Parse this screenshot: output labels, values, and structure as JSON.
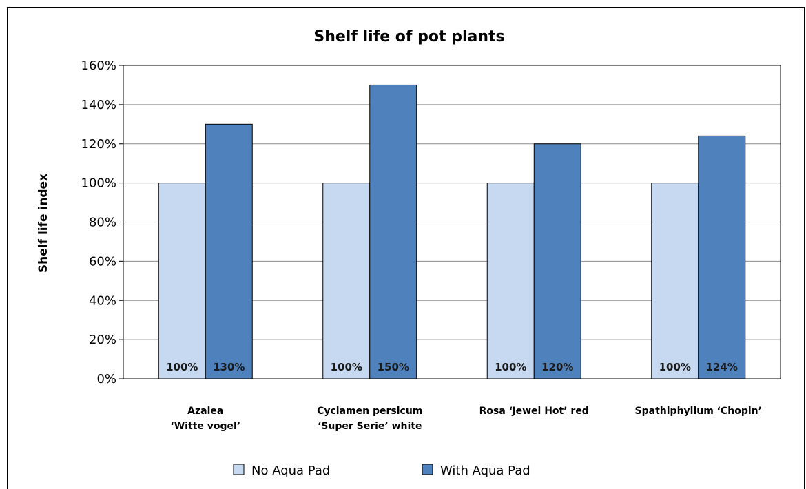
{
  "chart_data": {
    "type": "bar",
    "title": "Shelf life of pot plants",
    "ylabel": "Shelf life index",
    "xlabel": "",
    "ylim": [
      0,
      160
    ],
    "yticks": [
      "0%",
      "20%",
      "40%",
      "60%",
      "80%",
      "100%",
      "120%",
      "140%",
      "160%"
    ],
    "grid": true,
    "legend_position": "bottom",
    "categories": [
      [
        "Azalea",
        "‘Witte vogel’"
      ],
      [
        "Cyclamen persicum",
        "‘Super Serie’ white"
      ],
      [
        "Rosa ‘Jewel Hot’ red"
      ],
      [
        "Spathiphyllum ‘Chopin’"
      ]
    ],
    "series": [
      {
        "name": "No Aqua Pad",
        "color": "#c6d9f1",
        "values": [
          100,
          100,
          100,
          100
        ],
        "labels": [
          "100%",
          "100%",
          "100%",
          "100%"
        ]
      },
      {
        "name": "With Aqua Pad",
        "color": "#4f81bd",
        "values": [
          130,
          150,
          120,
          124
        ],
        "labels": [
          "130%",
          "150%",
          "120%",
          "124%"
        ]
      }
    ]
  }
}
